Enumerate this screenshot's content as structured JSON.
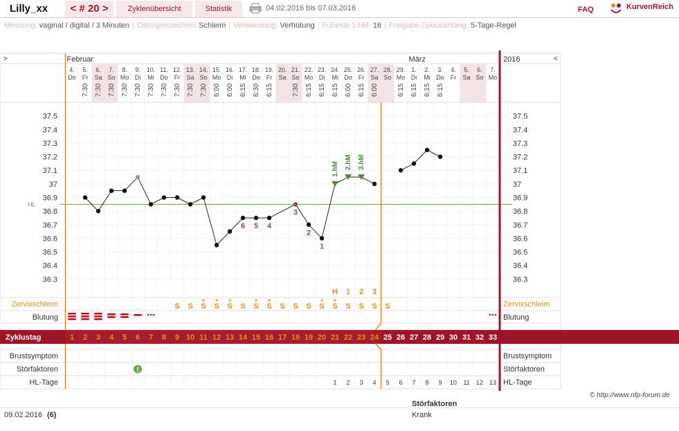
{
  "header": {
    "user": "Lilly_xx",
    "cycle_nav": "< # 20 >",
    "tabs": [
      "Zyklenübersicht",
      "Statistik"
    ],
    "date_range": "04.02.2016 bis 07.03.2016",
    "faq": "FAQ",
    "brand": "KurvenReich"
  },
  "meta": [
    {
      "label": "Messung:",
      "value": "vaginal / digital / 3 Minuten"
    },
    {
      "label": "Östrogenzeichen:",
      "value": "Schleim"
    },
    {
      "label": "Verwendung:",
      "value": "Verhütung"
    },
    {
      "label": "früheste 1.hM:",
      "value": "16"
    },
    {
      "label": "Freigabe Zyklusanfang:",
      "value": "5-Tage-Regel"
    }
  ],
  "nav": {
    "left": ">",
    "right": "<",
    "year": "2016"
  },
  "months": [
    {
      "name": "Februar",
      "col": 0
    },
    {
      "name": "März",
      "col": 26
    }
  ],
  "days": [
    {
      "d": "4.",
      "w": "Do",
      "t": "",
      "we": false
    },
    {
      "d": "5.",
      "w": "Fr",
      "t": "7:30",
      "we": false
    },
    {
      "d": "6.",
      "w": "Sa",
      "t": "7:30",
      "we": true
    },
    {
      "d": "7.",
      "w": "So",
      "t": "7:30",
      "we": true
    },
    {
      "d": "8.",
      "w": "Mo",
      "t": "7:30",
      "we": false
    },
    {
      "d": "9.",
      "w": "Di",
      "t": "7:30",
      "we": false
    },
    {
      "d": "10.",
      "w": "Mi",
      "t": "7:30",
      "we": false
    },
    {
      "d": "11.",
      "w": "Do",
      "t": "7:30",
      "we": false
    },
    {
      "d": "12.",
      "w": "Fr",
      "t": "7:30",
      "we": false
    },
    {
      "d": "13.",
      "w": "Sa",
      "t": "7:30",
      "we": true
    },
    {
      "d": "14.",
      "w": "So",
      "t": "7:30",
      "we": true
    },
    {
      "d": "15.",
      "w": "Mo",
      "t": "6:00",
      "we": false
    },
    {
      "d": "16.",
      "w": "Di",
      "t": "6:00",
      "we": false
    },
    {
      "d": "17.",
      "w": "Mi",
      "t": "6:15",
      "we": false
    },
    {
      "d": "18.",
      "w": "Do",
      "t": "6:30",
      "we": false
    },
    {
      "d": "19.",
      "w": "Fr",
      "t": "6:15",
      "we": false
    },
    {
      "d": "20.",
      "w": "Sa",
      "t": "",
      "we": true
    },
    {
      "d": "21.",
      "w": "So",
      "t": "7:30",
      "we": true
    },
    {
      "d": "22.",
      "w": "Mo",
      "t": "6:15",
      "we": false
    },
    {
      "d": "23.",
      "w": "Di",
      "t": "6:15",
      "we": false
    },
    {
      "d": "24.",
      "w": "Mi",
      "t": "6:15",
      "we": false
    },
    {
      "d": "25.",
      "w": "Do",
      "t": "6:00",
      "we": false
    },
    {
      "d": "26.",
      "w": "Fr",
      "t": "6:15",
      "we": false
    },
    {
      "d": "27.",
      "w": "Sa",
      "t": "6:00",
      "we": true
    },
    {
      "d": "28.",
      "w": "So",
      "t": "",
      "we": true
    },
    {
      "d": "29.",
      "w": "Mo",
      "t": "6:15",
      "we": false
    },
    {
      "d": "1.",
      "w": "Di",
      "t": "6:15",
      "we": false
    },
    {
      "d": "2.",
      "w": "Mi",
      "t": "6:15",
      "we": false
    },
    {
      "d": "3.",
      "w": "Do",
      "t": "6:15",
      "we": false
    },
    {
      "d": "4.",
      "w": "Fr",
      "t": "",
      "we": false
    },
    {
      "d": "5.",
      "w": "Sa",
      "t": "",
      "we": true
    },
    {
      "d": "6.",
      "w": "So",
      "t": "",
      "we": true
    },
    {
      "d": "7.",
      "w": "Mo",
      "t": "",
      "we": false
    }
  ],
  "chart_data": {
    "type": "line",
    "ylim": [
      36.2,
      37.6
    ],
    "yticks": [
      "37.5",
      "37.4",
      "37.3",
      "37.2",
      "37.1",
      "37",
      "36.9",
      "36.8",
      "36.7",
      "36.6",
      "36.5",
      "36.4",
      "36.3"
    ],
    "hl_label": "HL",
    "hl_value": 36.85,
    "temps": [
      null,
      36.9,
      36.8,
      36.95,
      36.95,
      37.05,
      36.85,
      36.9,
      36.9,
      36.85,
      36.9,
      36.55,
      36.65,
      36.75,
      36.75,
      36.75,
      null,
      36.85,
      36.7,
      36.6,
      37.0,
      37.05,
      37.05,
      37.0,
      null,
      37.1,
      37.15,
      37.25,
      37.2,
      null,
      null,
      null,
      null
    ],
    "excluded": [
      5,
      17
    ],
    "counts": [
      {
        "col": 13,
        "n": "6"
      },
      {
        "col": 14,
        "n": "5"
      },
      {
        "col": 15,
        "n": "4"
      },
      {
        "col": 17,
        "n": "3"
      },
      {
        "col": 18,
        "n": "2"
      },
      {
        "col": 19,
        "n": "1"
      }
    ],
    "high_marks": [
      {
        "col": 20,
        "label": "1.hM"
      },
      {
        "col": 21,
        "label": "2.hM"
      },
      {
        "col": 22,
        "label": "3.hM"
      }
    ]
  },
  "cervix": {
    "label": "Zervixschleim",
    "top": [
      "",
      "",
      "",
      "",
      "",
      "",
      "",
      "",
      "",
      "",
      "",
      "",
      "",
      "",
      "",
      "",
      "",
      "",
      "",
      "",
      "H",
      "1",
      "2",
      "3",
      "",
      "",
      "",
      "",
      "",
      "",
      "",
      "",
      ""
    ],
    "marks": [
      "",
      "",
      "",
      "",
      "",
      "",
      "",
      "",
      "S",
      "S",
      "S+",
      "S+",
      "S+",
      "S",
      "S+",
      "S+",
      "S",
      "S",
      "S",
      "S+",
      "S+",
      "S",
      "S",
      "S",
      "S",
      "",
      "",
      "",
      "",
      "",
      "",
      "",
      ""
    ]
  },
  "bleeding": {
    "label": "Blutung",
    "levels": [
      3,
      3,
      3,
      2,
      2,
      1,
      0.5,
      0,
      0,
      0,
      0,
      0,
      0,
      0,
      0,
      0,
      0,
      0,
      0,
      0,
      0,
      0,
      0,
      0,
      0,
      0,
      0,
      0,
      0,
      0,
      0,
      0,
      0.5
    ]
  },
  "cycle": {
    "label": "Zyklustag",
    "days": [
      "1",
      "2",
      "3",
      "4",
      "5",
      "6",
      "7",
      "8",
      "9",
      "10",
      "11",
      "12",
      "13",
      "14",
      "15",
      "16",
      "17",
      "18",
      "19",
      "20",
      "21",
      "22",
      "23",
      "24",
      "25",
      "26",
      "27",
      "28",
      "29",
      "30",
      "31",
      "32",
      "33"
    ]
  },
  "rows": {
    "breast": "Brustsymptom",
    "disturb": "Störfaktoren",
    "hl_days": "HL-Tage"
  },
  "disturbance_icon": "warning-icon",
  "hl_days": [
    "",
    "",
    "",
    "",
    "",
    "",
    "",
    "",
    "",
    "",
    "",
    "",
    "",
    "",
    "",
    "",
    "",
    "",
    "",
    "",
    "1",
    "2",
    "3",
    "4",
    "5",
    "6",
    "7",
    "8",
    "9",
    "10",
    "11",
    "12",
    "13"
  ],
  "copyright": "© http://www.nfp-forum.de",
  "bottom": {
    "date": "09.02.2016",
    "count": "(6)",
    "stor_title": "Störfaktoren",
    "stor_value": "Krank"
  },
  "colors": {
    "accent": "#a0142a",
    "orange": "#e88a1a",
    "green": "#4e8a3e",
    "weekend": "#f2e4e6",
    "count": "#8a4f5a",
    "hl": "#6a9a4a"
  }
}
